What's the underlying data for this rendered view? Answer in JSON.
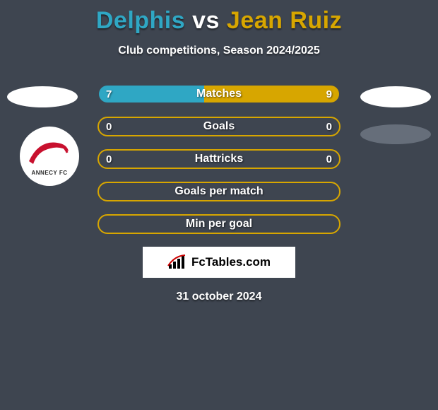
{
  "title": {
    "player1": "Delphis",
    "vs": "vs",
    "player2": "Jean Ruiz",
    "color_p1": "#2fa7c4",
    "color_vs": "#ffffff",
    "color_p2": "#d7a600"
  },
  "subtitle": "Club competitions, Season 2024/2025",
  "background_color": "#3e4550",
  "club_logo": {
    "name": "ANNECY FC",
    "swoosh_color": "#c8102e",
    "text_color": "#2a2a2a"
  },
  "colors": {
    "left_fill": "#2fa7c4",
    "right_fill": "#d7a600",
    "empty_border": "#d7a600"
  },
  "bars": [
    {
      "label": "Matches",
      "left_value": "7",
      "right_value": "9",
      "left_num": 7,
      "right_num": 9,
      "left_pct": 43.75,
      "right_pct": 56.25,
      "mode": "split"
    },
    {
      "label": "Goals",
      "left_value": "0",
      "right_value": "0",
      "left_num": 0,
      "right_num": 0,
      "left_pct": 0,
      "right_pct": 0,
      "mode": "empty"
    },
    {
      "label": "Hattricks",
      "left_value": "0",
      "right_value": "0",
      "left_num": 0,
      "right_num": 0,
      "left_pct": 0,
      "right_pct": 0,
      "mode": "empty"
    },
    {
      "label": "Goals per match",
      "left_value": "",
      "right_value": "",
      "left_num": 0,
      "right_num": 0,
      "left_pct": 0,
      "right_pct": 0,
      "mode": "empty"
    },
    {
      "label": "Min per goal",
      "left_value": "",
      "right_value": "",
      "left_num": 0,
      "right_num": 0,
      "left_pct": 0,
      "right_pct": 0,
      "mode": "empty"
    }
  ],
  "brand": {
    "text": "FcTables.com",
    "color": "#000000"
  },
  "date": "31 october 2024"
}
